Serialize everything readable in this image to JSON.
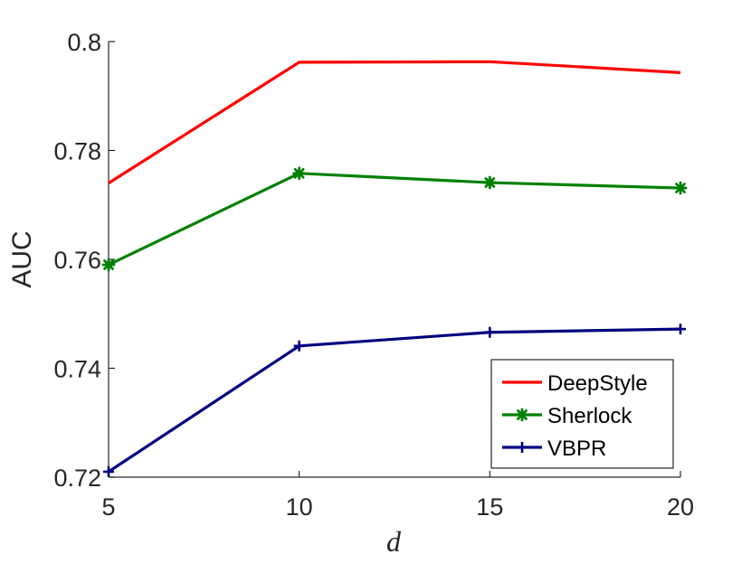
{
  "chart_data": {
    "type": "line",
    "xlabel": "d",
    "ylabel": "AUC",
    "xlim": [
      5,
      20
    ],
    "ylim": [
      0.72,
      0.8
    ],
    "xticks": [
      "5",
      "10",
      "15",
      "20"
    ],
    "yticks": [
      "0.72",
      "0.74",
      "0.76",
      "0.78",
      "0.8"
    ],
    "x": [
      5,
      10,
      15,
      20
    ],
    "grid": false,
    "legend_position": "bottom-right",
    "series": [
      {
        "name": "DeepStyle",
        "values": [
          0.774,
          0.7962,
          0.7963,
          0.7943
        ],
        "color": "#ff0000",
        "marker": "none"
      },
      {
        "name": "Sherlock",
        "values": [
          0.759,
          0.7758,
          0.7741,
          0.7731
        ],
        "color": "#008000",
        "marker": "asterisk"
      },
      {
        "name": "VBPR",
        "values": [
          0.721,
          0.7441,
          0.7466,
          0.7472
        ],
        "color": "#000080",
        "marker": "plus"
      }
    ]
  }
}
